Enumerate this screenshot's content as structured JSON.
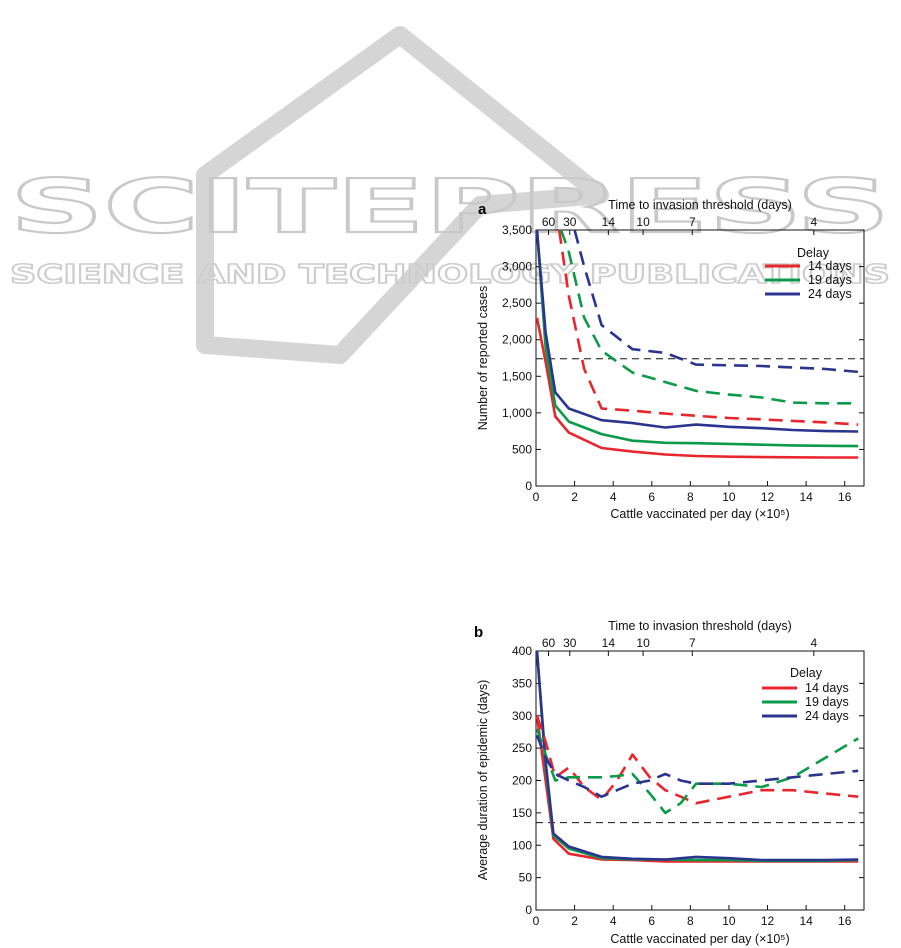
{
  "watermark": {
    "title": "SCITEPRESS",
    "subtitle": "SCIENCE AND TECHNOLOGY PUBLICATIONS"
  },
  "colors": {
    "14 days": "#e8262d",
    "19 days": "#0b9b48",
    "24 days": "#2b3590",
    "threshold": "#111111"
  },
  "chart_data": [
    {
      "type": "line",
      "panel_label": "a",
      "top_axis_title": "Time to invasion threshold (days)",
      "top_ticks": [
        {
          "label": "60",
          "x": 0.65
        },
        {
          "label": "30",
          "x": 1.75
        },
        {
          "label": "14",
          "x": 3.75
        },
        {
          "label": "10",
          "x": 5.55
        },
        {
          "label": "7",
          "x": 8.1
        },
        {
          "label": "4",
          "x": 14.4
        }
      ],
      "xlabel": "Cattle vaccinated per day (×10⁵)",
      "ylabel": "Number of reported cases",
      "xlim": [
        0,
        17
      ],
      "ylim": [
        0,
        3500
      ],
      "x_ticks": [
        "0",
        "2",
        "4",
        "6",
        "8",
        "10",
        "12",
        "14",
        "16"
      ],
      "y_ticks": [
        "0",
        "500",
        "1,000",
        "1,500",
        "2,000",
        "2,500",
        "3,000",
        "3,500"
      ],
      "threshold_y": 1740,
      "legend_title": "Delay",
      "series": [
        {
          "name": "14 days",
          "style": "solid",
          "x": [
            0.05,
            0.5,
            1.0,
            1.7,
            3.4,
            5.0,
            6.7,
            8.3,
            10.0,
            11.7,
            13.3,
            15.0,
            16.7
          ],
          "y": [
            2300,
            1700,
            950,
            730,
            520,
            470,
            430,
            410,
            400,
            395,
            392,
            390,
            390
          ]
        },
        {
          "name": "19 days",
          "style": "solid",
          "x": [
            0.05,
            0.5,
            1.0,
            1.7,
            3.4,
            5.0,
            6.7,
            8.3,
            10.0,
            11.7,
            13.3,
            15.0,
            16.7
          ],
          "y": [
            3500,
            1900,
            1100,
            880,
            710,
            620,
            590,
            585,
            575,
            565,
            555,
            550,
            545
          ]
        },
        {
          "name": "24 days",
          "style": "solid",
          "x": [
            0.05,
            0.5,
            1.0,
            1.7,
            3.4,
            5.0,
            6.7,
            8.3,
            10.0,
            11.7,
            13.3,
            15.0,
            16.7
          ],
          "y": [
            3500,
            2100,
            1280,
            1060,
            900,
            860,
            800,
            840,
            810,
            790,
            765,
            750,
            745
          ]
        },
        {
          "name": "14 days",
          "style": "dashed",
          "x": [
            1.2,
            1.7,
            2.5,
            3.4,
            5.0,
            6.7,
            8.3,
            10.0,
            11.7,
            13.3,
            15.0,
            16.7
          ],
          "y": [
            3500,
            2600,
            1600,
            1060,
            1030,
            990,
            960,
            930,
            910,
            890,
            870,
            840
          ]
        },
        {
          "name": "19 days",
          "style": "dashed",
          "x": [
            1.3,
            1.7,
            2.5,
            3.4,
            5.0,
            6.7,
            8.3,
            10.0,
            11.7,
            13.3,
            15.0,
            16.7
          ],
          "y": [
            3500,
            3200,
            2300,
            1850,
            1550,
            1420,
            1300,
            1250,
            1210,
            1140,
            1130,
            1130
          ]
        },
        {
          "name": "24 days",
          "style": "dashed",
          "x": [
            2.0,
            2.5,
            3.4,
            5.0,
            6.7,
            8.3,
            10.0,
            11.7,
            13.3,
            15.0,
            16.7
          ],
          "y": [
            3500,
            3000,
            2200,
            1870,
            1820,
            1660,
            1650,
            1640,
            1620,
            1600,
            1560
          ]
        }
      ]
    },
    {
      "type": "line",
      "panel_label": "b",
      "top_axis_title": "Time to invasion threshold (days)",
      "top_ticks": [
        {
          "label": "60",
          "x": 0.65
        },
        {
          "label": "30",
          "x": 1.75
        },
        {
          "label": "14",
          "x": 3.75
        },
        {
          "label": "10",
          "x": 5.55
        },
        {
          "label": "7",
          "x": 8.1
        },
        {
          "label": "4",
          "x": 14.4
        }
      ],
      "xlabel": "Cattle vaccinated per day (×10⁵)",
      "ylabel": "Average duration of epidemic (days)",
      "xlim": [
        0,
        17
      ],
      "ylim": [
        0,
        400
      ],
      "x_ticks": [
        "0",
        "2",
        "4",
        "6",
        "8",
        "10",
        "12",
        "14",
        "16"
      ],
      "y_ticks": [
        "0",
        "50",
        "100",
        "150",
        "200",
        "250",
        "300",
        "350",
        "400"
      ],
      "threshold_y": 135,
      "legend_title": "Delay",
      "series": [
        {
          "name": "14 days",
          "style": "solid",
          "x": [
            0.05,
            0.5,
            0.9,
            1.7,
            3.4,
            5.0,
            6.7,
            8.3,
            10.0,
            11.7,
            13.3,
            15.0,
            16.7
          ],
          "y": [
            300,
            200,
            110,
            87,
            78,
            77,
            75,
            75,
            75,
            75,
            75,
            75,
            75
          ]
        },
        {
          "name": "19 days",
          "style": "solid",
          "x": [
            0.05,
            0.5,
            0.9,
            1.7,
            3.4,
            5.0,
            6.7,
            8.3,
            10.0,
            11.7,
            13.3,
            15.0,
            16.7
          ],
          "y": [
            400,
            220,
            115,
            95,
            80,
            78,
            78,
            77,
            77,
            76,
            76,
            76,
            77
          ]
        },
        {
          "name": "24 days",
          "style": "solid",
          "x": [
            0.05,
            0.5,
            0.9,
            1.7,
            3.4,
            5.0,
            6.7,
            8.3,
            10.0,
            11.7,
            13.3,
            15.0,
            16.7
          ],
          "y": [
            400,
            230,
            118,
            98,
            82,
            79,
            78,
            82,
            80,
            77,
            77,
            77,
            78
          ]
        },
        {
          "name": "14 days",
          "style": "dashed",
          "x": [
            0.05,
            0.5,
            1.0,
            1.7,
            2.5,
            3.4,
            4.2,
            5.0,
            5.9,
            6.7,
            7.5,
            8.3,
            10.0,
            11.7,
            13.3,
            15.0,
            16.7
          ],
          "y": [
            300,
            260,
            205,
            220,
            190,
            170,
            200,
            240,
            205,
            185,
            175,
            165,
            175,
            185,
            185,
            180,
            175
          ]
        },
        {
          "name": "19 days",
          "style": "dashed",
          "x": [
            0.05,
            0.5,
            1.0,
            1.7,
            2.5,
            3.4,
            4.2,
            5.0,
            5.9,
            6.7,
            7.5,
            8.3,
            10.0,
            11.7,
            13.3,
            15.0,
            16.7
          ],
          "y": [
            280,
            240,
            200,
            205,
            205,
            205,
            207,
            210,
            180,
            150,
            165,
            195,
            195,
            190,
            205,
            235,
            265
          ]
        },
        {
          "name": "24 days",
          "style": "dashed",
          "x": [
            0.05,
            0.5,
            1.0,
            1.7,
            2.5,
            3.4,
            4.2,
            5.0,
            5.9,
            6.7,
            7.5,
            8.3,
            10.0,
            11.7,
            13.3,
            15.0,
            16.7
          ],
          "y": [
            270,
            235,
            210,
            200,
            190,
            175,
            185,
            195,
            200,
            210,
            200,
            195,
            195,
            200,
            205,
            210,
            215
          ]
        }
      ]
    }
  ]
}
